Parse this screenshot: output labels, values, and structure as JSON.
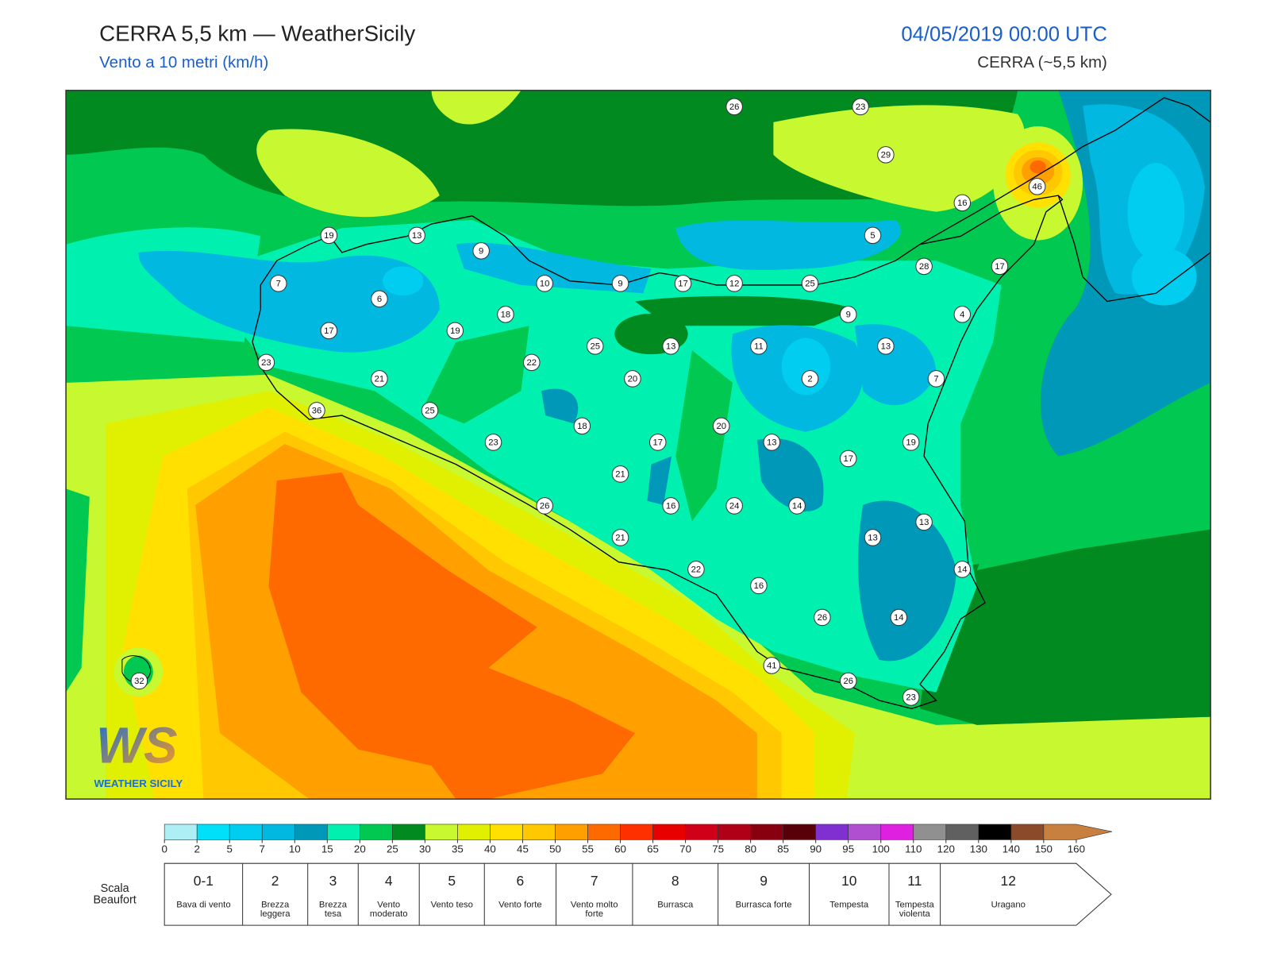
{
  "header": {
    "title": "CERRA 5,5 km — WeatherSicily",
    "subtitle": "Vento a 10 metri (km/h)",
    "datetime": "04/05/2019 00:00 UTC",
    "model": "CERRA (~5,5 km)"
  },
  "map": {
    "stations": [
      26,
      23,
      29,
      16,
      46,
      19,
      13,
      9,
      5,
      7,
      10,
      9,
      17,
      12,
      25,
      28,
      17,
      6,
      18,
      9,
      4,
      17,
      19,
      25,
      13,
      11,
      13,
      23,
      21,
      22,
      20,
      2,
      7,
      36,
      25,
      18,
      20,
      23,
      17,
      13,
      19,
      17,
      21,
      26,
      16,
      24,
      14,
      13,
      13,
      21,
      22,
      14,
      16,
      26,
      14,
      41,
      26,
      23,
      32
    ]
  },
  "logo": {
    "mark": "WS",
    "text": "WEATHER SICILY"
  },
  "legend": {
    "ticks": [
      0,
      2,
      5,
      7,
      10,
      15,
      20,
      25,
      30,
      35,
      40,
      45,
      50,
      55,
      60,
      65,
      70,
      75,
      80,
      85,
      90,
      95,
      100,
      110,
      120,
      130,
      140,
      150,
      160
    ],
    "colors": [
      "#aeeef5",
      "#00e0f8",
      "#00cdf0",
      "#00b8e0",
      "#0098b8",
      "#00f0b0",
      "#00c850",
      "#008a20",
      "#c8f830",
      "#e0f000",
      "#ffe000",
      "#ffc800",
      "#ffa000",
      "#ff6a00",
      "#ff3000",
      "#e80000",
      "#d00018",
      "#b00018",
      "#880010",
      "#580008",
      "#8030d0",
      "#b050d0",
      "#e020e0",
      "#909090",
      "#606060",
      "#000000",
      "#8b4a2a",
      "#c88040"
    ]
  },
  "beaufort": {
    "title": "Scala Beaufort",
    "levels": [
      {
        "force": "0-1",
        "description": "Bava di vento"
      },
      {
        "force": "2",
        "description": "Brezza leggera"
      },
      {
        "force": "3",
        "description": "Brezza tesa"
      },
      {
        "force": "4",
        "description": "Vento moderato"
      },
      {
        "force": "5",
        "description": "Vento teso"
      },
      {
        "force": "6",
        "description": "Vento forte"
      },
      {
        "force": "7",
        "description": "Vento molto forte"
      },
      {
        "force": "8",
        "description": "Burrasca"
      },
      {
        "force": "9",
        "description": "Burrasca forte"
      },
      {
        "force": "10",
        "description": "Tempesta"
      },
      {
        "force": "11",
        "description": "Tempesta violenta"
      },
      {
        "force": "12",
        "description": "Uragano"
      }
    ]
  }
}
